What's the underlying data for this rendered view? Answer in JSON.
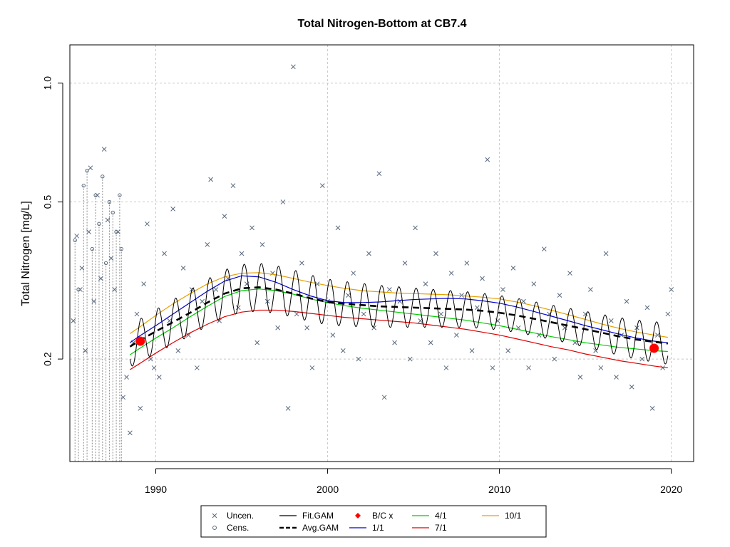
{
  "chart_data": {
    "type": "scatter",
    "title": "Total Nitrogen-Bottom at CB7.4",
    "xlabel": "",
    "ylabel": "Total Nitrogen [mg/L]",
    "xlim": [
      1985.0,
      2021.3
    ],
    "ylim": [
      0.11,
      1.25
    ],
    "y_scale": "log",
    "grid": true,
    "legend_placement": "bottom-center",
    "x_ticks": [
      1990,
      2000,
      2010,
      2020
    ],
    "x_tick_labels": [
      "1990",
      "2000",
      "2010",
      "2020"
    ],
    "y_ticks": [
      0.2,
      0.5,
      1.0
    ],
    "y_tick_labels": [
      "0.2",
      "0.5",
      "1.0"
    ],
    "legend": [
      {
        "label": "Uncen.",
        "symbol": "x",
        "color": "#5a6a7e"
      },
      {
        "label": "Cens.",
        "symbol": "circle",
        "color": "#5a6a7e"
      },
      {
        "label": "Fit.GAM",
        "symbol": "line",
        "color": "#000000"
      },
      {
        "label": "Avg.GAM",
        "symbol": "dashed",
        "color": "#000000"
      },
      {
        "label": "B/C x",
        "symbol": "diamond",
        "color": "#ff0000"
      },
      {
        "label": "1/1",
        "symbol": "line",
        "color": "#0000cc"
      },
      {
        "label": "4/1",
        "symbol": "line",
        "color": "#00cc00"
      },
      {
        "label": "7/1",
        "symbol": "line",
        "color": "#dd0000"
      },
      {
        "label": "10/1",
        "symbol": "line",
        "color": "#e69f00"
      }
    ],
    "series": [
      {
        "name": "Uncen.",
        "x": [
          1985.2,
          1985.4,
          1985.6,
          1985.7,
          1985.9,
          1986.1,
          1986.2,
          1986.4,
          1986.6,
          1986.8,
          1987.0,
          1987.2,
          1987.4,
          1987.6,
          1987.8,
          1988.1,
          1988.3,
          1988.5,
          1988.7,
          1988.9,
          1989.1,
          1989.3,
          1989.5,
          1989.7,
          1989.9,
          1990.2,
          1990.5,
          1990.8,
          1991.0,
          1991.3,
          1991.6,
          1991.9,
          1992.1,
          1992.4,
          1992.7,
          1993.0,
          1993.2,
          1993.5,
          1993.7,
          1994.0,
          1994.2,
          1994.5,
          1994.8,
          1995.0,
          1995.3,
          1995.6,
          1995.9,
          1996.2,
          1996.5,
          1996.8,
          1997.1,
          1997.4,
          1997.7,
          1998.0,
          1998.2,
          1998.5,
          1998.8,
          1999.1,
          1999.4,
          1999.7,
          2000.0,
          2000.3,
          2000.6,
          2000.9,
          2001.2,
          2001.5,
          2001.8,
          2002.1,
          2002.4,
          2002.7,
          2003.0,
          2003.3,
          2003.6,
          2003.9,
          2004.2,
          2004.5,
          2004.8,
          2005.1,
          2005.4,
          2005.7,
          2006.0,
          2006.3,
          2006.6,
          2006.9,
          2007.2,
          2007.5,
          2007.8,
          2008.1,
          2008.4,
          2008.7,
          2009.0,
          2009.3,
          2009.6,
          2009.9,
          2010.2,
          2010.5,
          2010.8,
          2011.1,
          2011.4,
          2011.7,
          2012.0,
          2012.3,
          2012.6,
          2012.9,
          2013.2,
          2013.5,
          2013.8,
          2014.1,
          2014.4,
          2014.7,
          2015.0,
          2015.3,
          2015.6,
          2015.9,
          2016.2,
          2016.5,
          2016.8,
          2017.1,
          2017.4,
          2017.7,
          2018.0,
          2018.3,
          2018.6,
          2018.9,
          2019.2,
          2019.5,
          2019.8,
          2020.0
        ],
        "values": [
          0.25,
          0.41,
          0.3,
          0.34,
          0.21,
          0.42,
          0.61,
          0.28,
          0.52,
          0.32,
          0.68,
          0.45,
          0.36,
          0.3,
          0.42,
          0.16,
          0.18,
          0.13,
          0.22,
          0.26,
          0.15,
          0.31,
          0.44,
          0.2,
          0.19,
          0.18,
          0.37,
          0.25,
          0.48,
          0.21,
          0.34,
          0.23,
          0.3,
          0.19,
          0.28,
          0.39,
          0.57,
          0.3,
          0.25,
          0.46,
          0.32,
          0.55,
          0.27,
          0.37,
          0.31,
          0.43,
          0.22,
          0.39,
          0.28,
          0.33,
          0.24,
          0.5,
          0.15,
          1.1,
          0.26,
          0.35,
          0.24,
          0.19,
          0.31,
          0.55,
          0.28,
          0.23,
          0.43,
          0.21,
          0.29,
          0.33,
          0.2,
          0.26,
          0.37,
          0.24,
          0.59,
          0.16,
          0.3,
          0.22,
          0.28,
          0.35,
          0.2,
          0.43,
          0.25,
          0.31,
          0.22,
          0.37,
          0.26,
          0.19,
          0.33,
          0.23,
          0.29,
          0.35,
          0.21,
          0.27,
          0.32,
          0.64,
          0.19,
          0.25,
          0.3,
          0.21,
          0.34,
          0.24,
          0.28,
          0.19,
          0.31,
          0.23,
          0.38,
          0.26,
          0.2,
          0.29,
          0.24,
          0.33,
          0.22,
          0.18,
          0.26,
          0.3,
          0.21,
          0.19,
          0.37,
          0.25,
          0.18,
          0.23,
          0.28,
          0.17,
          0.24,
          0.2,
          0.27,
          0.15,
          0.23,
          0.19,
          0.26,
          0.3
        ]
      },
      {
        "name": "Cens.",
        "x": [
          1985.3,
          1985.5,
          1985.8,
          1986.0,
          1986.3,
          1986.5,
          1986.7,
          1986.9,
          1987.1,
          1987.3,
          1987.5,
          1987.7,
          1987.9,
          1988.0
        ],
        "values": [
          0.4,
          0.3,
          0.55,
          0.6,
          0.38,
          0.52,
          0.44,
          0.58,
          0.35,
          0.5,
          0.47,
          0.42,
          0.52,
          0.38
        ]
      },
      {
        "name": "Avg.GAM",
        "x": [
          1988.5,
          1989.0,
          1990.0,
          1991.0,
          1992.0,
          1993.0,
          1994.0,
          1995.0,
          1996.0,
          1997.0,
          1998.0,
          1999.0,
          2000.0,
          2001.0,
          2002.0,
          2003.0,
          2004.0,
          2005.0,
          2006.0,
          2007.0,
          2008.0,
          2009.0,
          2010.0,
          2011.0,
          2012.0,
          2013.0,
          2014.0,
          2015.0,
          2016.0,
          2017.0,
          2018.0,
          2019.0,
          2019.8
        ],
        "values": [
          0.215,
          0.222,
          0.235,
          0.248,
          0.262,
          0.278,
          0.293,
          0.302,
          0.304,
          0.3,
          0.293,
          0.285,
          0.279,
          0.276,
          0.274,
          0.272,
          0.271,
          0.27,
          0.269,
          0.268,
          0.267,
          0.265,
          0.262,
          0.258,
          0.253,
          0.248,
          0.243,
          0.238,
          0.233,
          0.228,
          0.224,
          0.221,
          0.219
        ]
      },
      {
        "name": "1/1",
        "x": [
          1988.5,
          1989.0,
          1990.0,
          1991.0,
          1992.0,
          1993.0,
          1994.0,
          1995.0,
          1996.0,
          1997.0,
          1998.0,
          1999.0,
          2000.0,
          2001.0,
          2002.0,
          2003.0,
          2004.0,
          2005.0,
          2006.0,
          2007.0,
          2008.0,
          2009.0,
          2010.0,
          2011.0,
          2012.0,
          2013.0,
          2014.0,
          2015.0,
          2016.0,
          2017.0,
          2018.0,
          2019.0,
          2019.8
        ],
        "values": [
          0.22,
          0.228,
          0.243,
          0.26,
          0.278,
          0.297,
          0.315,
          0.325,
          0.323,
          0.313,
          0.3,
          0.289,
          0.281,
          0.278,
          0.278,
          0.279,
          0.281,
          0.283,
          0.284,
          0.285,
          0.284,
          0.281,
          0.277,
          0.271,
          0.264,
          0.257,
          0.25,
          0.243,
          0.237,
          0.231,
          0.226,
          0.222,
          0.22
        ]
      },
      {
        "name": "4/1",
        "x": [
          1988.5,
          1989.0,
          1990.0,
          1991.0,
          1992.0,
          1993.0,
          1994.0,
          1995.0,
          1996.0,
          1997.0,
          1998.0,
          1999.0,
          2000.0,
          2001.0,
          2002.0,
          2003.0,
          2004.0,
          2005.0,
          2006.0,
          2007.0,
          2008.0,
          2009.0,
          2010.0,
          2011.0,
          2012.0,
          2013.0,
          2014.0,
          2015.0,
          2016.0,
          2017.0,
          2018.0,
          2019.0,
          2019.8
        ],
        "values": [
          0.205,
          0.212,
          0.226,
          0.24,
          0.256,
          0.272,
          0.288,
          0.298,
          0.301,
          0.298,
          0.292,
          0.284,
          0.278,
          0.273,
          0.269,
          0.266,
          0.263,
          0.26,
          0.257,
          0.254,
          0.251,
          0.247,
          0.243,
          0.238,
          0.233,
          0.228,
          0.224,
          0.22,
          0.217,
          0.214,
          0.212,
          0.21,
          0.209
        ]
      },
      {
        "name": "7/1",
        "x": [
          1988.5,
          1989.0,
          1990.0,
          1991.0,
          1992.0,
          1993.0,
          1994.0,
          1995.0,
          1996.0,
          1997.0,
          1998.0,
          1999.0,
          2000.0,
          2001.0,
          2002.0,
          2003.0,
          2004.0,
          2005.0,
          2006.0,
          2007.0,
          2008.0,
          2009.0,
          2010.0,
          2011.0,
          2012.0,
          2013.0,
          2014.0,
          2015.0,
          2016.0,
          2017.0,
          2018.0,
          2019.0,
          2019.8
        ],
        "values": [
          0.188,
          0.194,
          0.207,
          0.22,
          0.233,
          0.245,
          0.256,
          0.263,
          0.266,
          0.266,
          0.264,
          0.261,
          0.258,
          0.255,
          0.253,
          0.251,
          0.249,
          0.247,
          0.244,
          0.241,
          0.238,
          0.234,
          0.23,
          0.225,
          0.22,
          0.215,
          0.211,
          0.206,
          0.202,
          0.198,
          0.195,
          0.192,
          0.19
        ]
      },
      {
        "name": "10/1",
        "x": [
          1988.5,
          1989.0,
          1990.0,
          1991.0,
          1992.0,
          1993.0,
          1994.0,
          1995.0,
          1996.0,
          1997.0,
          1998.0,
          1999.0,
          2000.0,
          2001.0,
          2002.0,
          2003.0,
          2004.0,
          2005.0,
          2006.0,
          2007.0,
          2008.0,
          2009.0,
          2010.0,
          2011.0,
          2012.0,
          2013.0,
          2014.0,
          2015.0,
          2016.0,
          2017.0,
          2018.0,
          2019.0,
          2019.8
        ],
        "values": [
          0.232,
          0.24,
          0.258,
          0.276,
          0.293,
          0.31,
          0.323,
          0.33,
          0.331,
          0.327,
          0.32,
          0.313,
          0.307,
          0.302,
          0.298,
          0.296,
          0.294,
          0.293,
          0.292,
          0.291,
          0.289,
          0.287,
          0.284,
          0.279,
          0.273,
          0.266,
          0.259,
          0.252,
          0.245,
          0.239,
          0.234,
          0.23,
          0.227
        ]
      },
      {
        "name": "B/C x",
        "x": [
          1989.1,
          2019.0
        ],
        "values": [
          0.222,
          0.213
        ]
      }
    ]
  }
}
